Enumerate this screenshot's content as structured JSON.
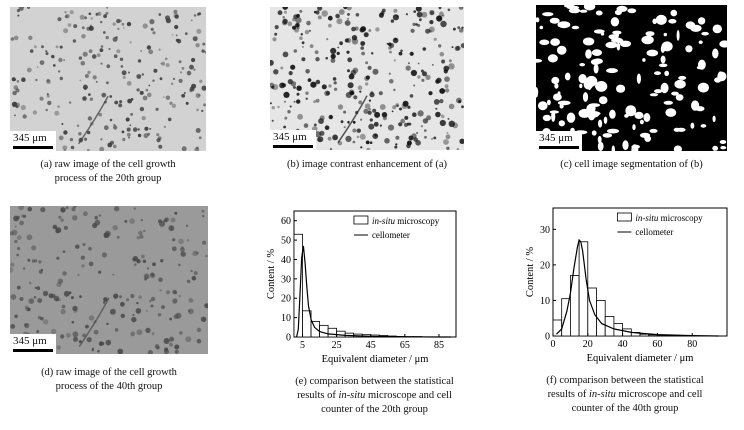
{
  "panels": {
    "a": {
      "caption_lines": [
        "(a) raw image of the cell growth",
        "process of the 20th group"
      ],
      "scale_label": "345 μm"
    },
    "b": {
      "caption_lines": [
        "(b) image contrast enhancement of (a)"
      ],
      "scale_label": "345 μm"
    },
    "c": {
      "caption_lines": [
        "(c) cell image segmentation of (b)"
      ],
      "scale_label": "345 μm"
    },
    "d": {
      "caption_lines": [
        "(d) raw image of the cell growth",
        "process of the 40th group"
      ],
      "scale_label": "345 μm"
    },
    "e": {
      "caption_lines": [
        "(e) comparison between the statistical",
        "results of in-situ microscope and cell",
        "counter of the 20th group"
      ],
      "caption_italic": "in-situ"
    },
    "f": {
      "caption_lines": [
        "(f) comparison between the statistical",
        "results of in-situ microscope and cell",
        "counter of the 40th group"
      ],
      "caption_italic": "in-situ"
    }
  },
  "chart_data": [
    {
      "id": "e",
      "type": "bar",
      "xlabel": "Equivalent diameter / μm",
      "ylabel": "Content / %",
      "xlim": [
        0,
        95
      ],
      "ylim": [
        0,
        65
      ],
      "xticks": [
        5,
        25,
        45,
        65,
        85
      ],
      "yticks": [
        0,
        10,
        20,
        30,
        40,
        50,
        60
      ],
      "legend": "top-right",
      "series": [
        {
          "name": "in-situ microscopy",
          "kind": "histogram",
          "bins": [
            [
              0,
              5,
              53
            ],
            [
              5,
              10,
              13.5
            ],
            [
              10,
              15,
              8
            ],
            [
              15,
              20,
              6
            ],
            [
              20,
              25,
              4.5
            ],
            [
              25,
              30,
              3
            ],
            [
              30,
              35,
              2
            ],
            [
              35,
              40,
              1.5
            ],
            [
              40,
              45,
              1.2
            ],
            [
              45,
              50,
              1
            ],
            [
              50,
              55,
              0.8
            ],
            [
              55,
              60,
              0.5
            ],
            [
              60,
              65,
              0.3
            ],
            [
              65,
              70,
              0.2
            ],
            [
              70,
              75,
              0.2
            ]
          ]
        },
        {
          "name": "cellometer",
          "kind": "line",
          "x": [
            1.5,
            2.5,
            3.5,
            4.5,
            5.5,
            6.5,
            7.5,
            8.5,
            10,
            12,
            15,
            20,
            30,
            45,
            65,
            85,
            92
          ],
          "y": [
            0,
            4,
            22,
            41,
            47,
            38,
            26,
            16,
            9,
            5,
            2.8,
            1.6,
            0.8,
            0.3,
            0.1,
            0,
            0
          ]
        }
      ]
    },
    {
      "id": "f",
      "type": "bar",
      "xlabel": "Equivalent diameter / μm",
      "ylabel": "Content / %",
      "xlim": [
        0,
        100
      ],
      "ylim": [
        0,
        36
      ],
      "xticks": [
        0,
        20,
        40,
        60,
        80
      ],
      "yticks": [
        0,
        10,
        20,
        30
      ],
      "legend": "top-right",
      "series": [
        {
          "name": "in-situ microscopy",
          "kind": "histogram",
          "bins": [
            [
              0,
              5,
              4.5
            ],
            [
              5,
              10,
              10.5
            ],
            [
              10,
              15,
              17
            ],
            [
              15,
              20,
              26.5
            ],
            [
              20,
              25,
              13.5
            ],
            [
              25,
              30,
              10
            ],
            [
              30,
              35,
              5.5
            ],
            [
              35,
              40,
              3.5
            ],
            [
              40,
              45,
              2
            ],
            [
              45,
              50,
              1
            ],
            [
              50,
              55,
              0.5
            ],
            [
              55,
              60,
              0.3
            ],
            [
              60,
              65,
              0.2
            ],
            [
              65,
              70,
              0.1
            ]
          ]
        },
        {
          "name": "cellometer",
          "kind": "line",
          "x": [
            2,
            5,
            8,
            10,
            12,
            14,
            15,
            16,
            17,
            19,
            21,
            24,
            28,
            35,
            45,
            60,
            80,
            95
          ],
          "y": [
            0.5,
            2,
            7,
            12,
            19,
            25,
            27,
            26.5,
            24,
            16,
            10,
            6,
            3.5,
            2,
            1,
            0.4,
            0.1,
            0
          ]
        }
      ]
    }
  ]
}
